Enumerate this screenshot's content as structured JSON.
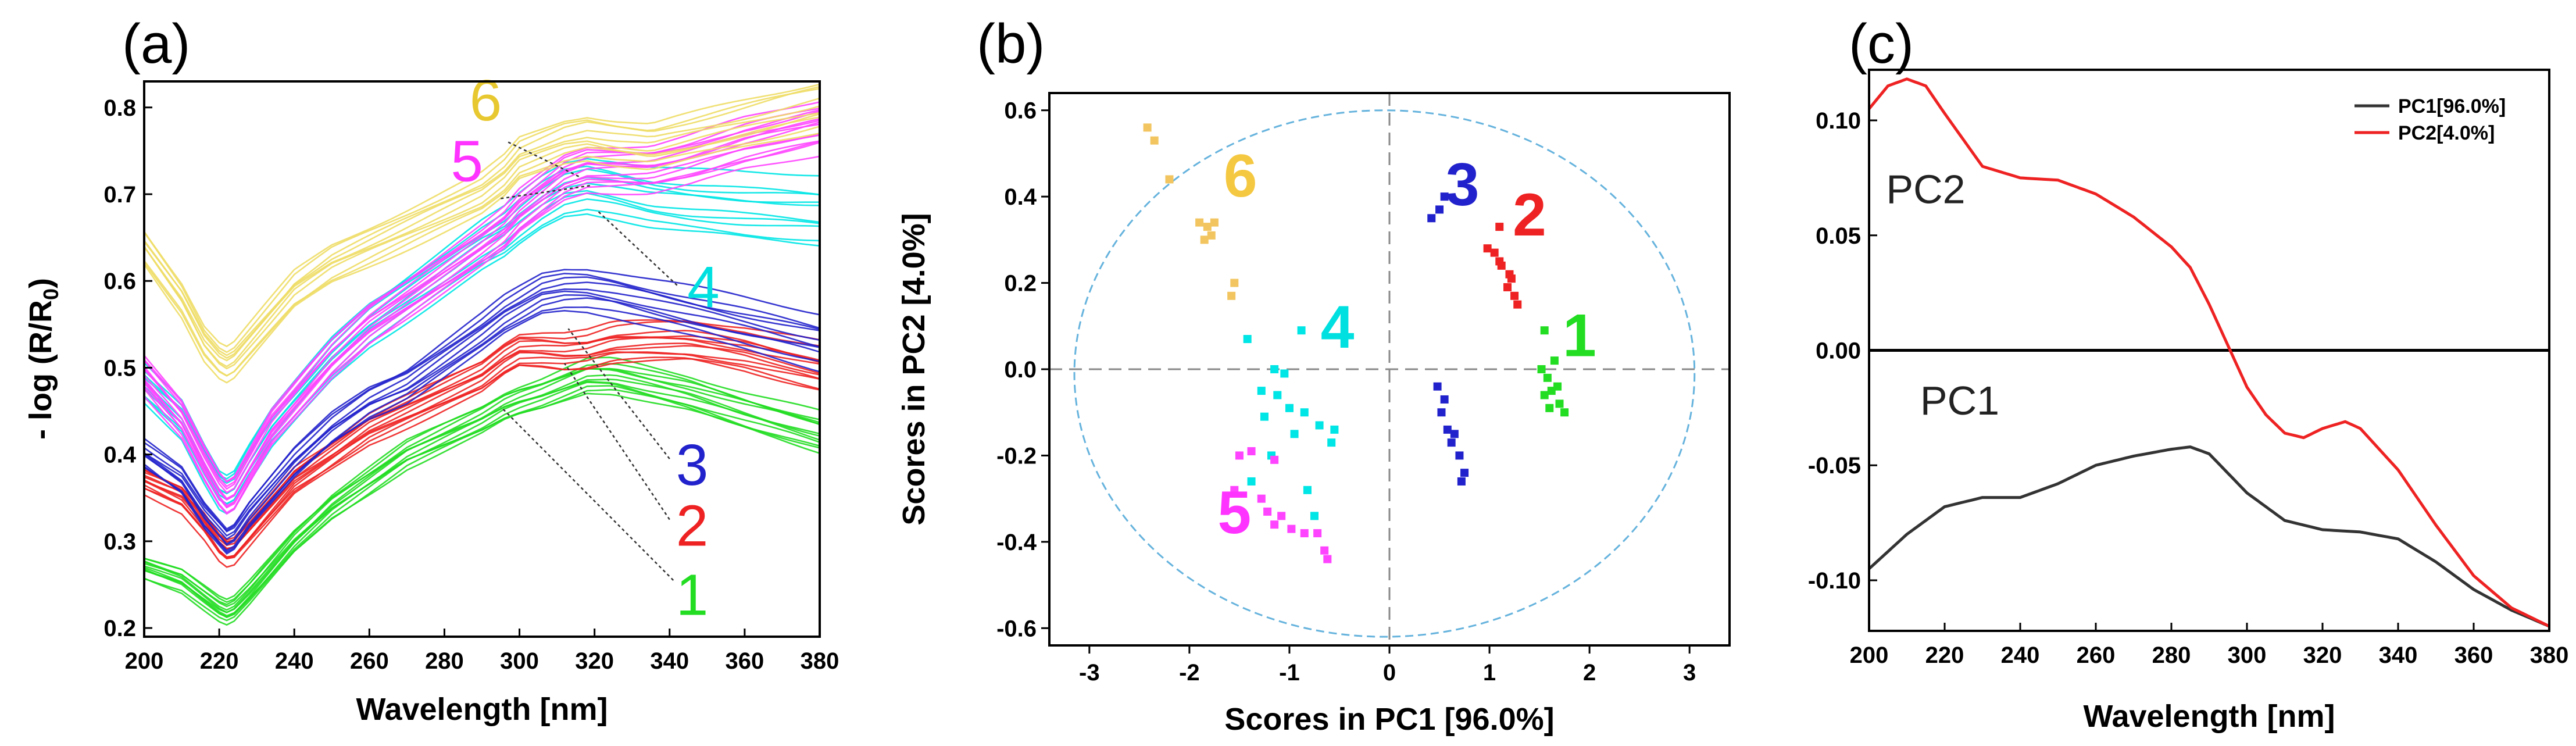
{
  "chart_data": [
    {
      "type": "line",
      "panel_label": "(a)",
      "xlabel": "Wavelength [nm]",
      "ylabel": "- log (R/R",
      "ylabel_sub": "0",
      "ylabel_close": ")",
      "xlim": [
        200,
        380
      ],
      "ylim": [
        0.19,
        0.83
      ],
      "xticks": [
        "200",
        "220",
        "240",
        "260",
        "280",
        "300",
        "320",
        "340",
        "360",
        "380"
      ],
      "yticks": [
        "0.2",
        "0.3",
        "0.4",
        "0.5",
        "0.6",
        "0.7",
        "0.8"
      ],
      "key_x": [
        200,
        210,
        216,
        220,
        222,
        224,
        228,
        234,
        240,
        250,
        260,
        270,
        280,
        290,
        296,
        300,
        306,
        312,
        318,
        325,
        335,
        345,
        360,
        380
      ],
      "groups": [
        {
          "name": "1",
          "color": "#22dd22",
          "count": 12,
          "spread": 0.035,
          "y": [
            0.27,
            0.255,
            0.235,
            0.222,
            0.218,
            0.222,
            0.24,
            0.27,
            0.3,
            0.34,
            0.37,
            0.4,
            0.42,
            0.44,
            0.455,
            0.462,
            0.47,
            0.48,
            0.49,
            0.49,
            0.48,
            0.47,
            0.45,
            0.425
          ]
        },
        {
          "name": "2",
          "color": "#ee2222",
          "count": 12,
          "spread": 0.04,
          "y": [
            0.37,
            0.35,
            0.32,
            0.295,
            0.288,
            0.29,
            0.31,
            0.34,
            0.37,
            0.4,
            0.43,
            0.45,
            0.47,
            0.49,
            0.51,
            0.52,
            0.52,
            0.518,
            0.52,
            0.528,
            0.53,
            0.53,
            0.52,
            0.5
          ]
        },
        {
          "name": "3",
          "color": "#2222cc",
          "count": 10,
          "spread": 0.045,
          "y": [
            0.4,
            0.37,
            0.33,
            0.31,
            0.3,
            0.305,
            0.33,
            0.36,
            0.39,
            0.43,
            0.46,
            0.48,
            0.51,
            0.54,
            0.56,
            0.57,
            0.585,
            0.59,
            0.59,
            0.585,
            0.575,
            0.565,
            0.55,
            0.53
          ]
        },
        {
          "name": "4",
          "color": "#00e5e5",
          "count": 10,
          "spread": 0.06,
          "y": [
            0.48,
            0.44,
            0.39,
            0.36,
            0.355,
            0.36,
            0.39,
            0.43,
            0.46,
            0.51,
            0.55,
            0.58,
            0.61,
            0.64,
            0.655,
            0.67,
            0.69,
            0.705,
            0.71,
            0.705,
            0.695,
            0.69,
            0.685,
            0.68
          ]
        },
        {
          "name": "5",
          "color": "#ff44ff",
          "count": 14,
          "spread": 0.05,
          "y": [
            0.49,
            0.44,
            0.39,
            0.36,
            0.35,
            0.355,
            0.385,
            0.43,
            0.46,
            0.51,
            0.55,
            0.58,
            0.61,
            0.64,
            0.66,
            0.68,
            0.7,
            0.72,
            0.73,
            0.73,
            0.73,
            0.74,
            0.76,
            0.78
          ]
        },
        {
          "name": "6",
          "color": "#eedd66",
          "count": 10,
          "spread": 0.05,
          "y": [
            0.64,
            0.58,
            0.53,
            0.51,
            0.505,
            0.51,
            0.53,
            0.56,
            0.59,
            0.62,
            0.64,
            0.66,
            0.68,
            0.7,
            0.72,
            0.74,
            0.75,
            0.76,
            0.765,
            0.76,
            0.755,
            0.765,
            0.78,
            0.8
          ]
        }
      ],
      "annotations": [
        {
          "text": "6",
          "color": "#e8c830",
          "x": 291,
          "y": 0.785,
          "from": [
            297,
            0.76
          ],
          "to": [
            316,
            0.72
          ]
        },
        {
          "text": "5",
          "color": "#ff33ff",
          "x": 286,
          "y": 0.715,
          "from": [
            295,
            0.695
          ],
          "to": [
            319,
            0.71
          ]
        },
        {
          "text": "4",
          "color": "#00e0e0",
          "x": 349,
          "y": 0.57,
          "from": [
            342,
            0.595
          ],
          "to": [
            321,
            0.68
          ]
        },
        {
          "text": "3",
          "color": "#2222cc",
          "x": 346,
          "y": 0.365,
          "from": [
            340,
            0.395
          ],
          "to": [
            313,
            0.545
          ]
        },
        {
          "text": "2",
          "color": "#ee2222",
          "x": 346,
          "y": 0.295,
          "from": [
            340,
            0.325
          ],
          "to": [
            312,
            0.505
          ]
        },
        {
          "text": "1",
          "color": "#22dd22",
          "x": 346,
          "y": 0.215,
          "from": [
            341,
            0.255
          ],
          "to": [
            295,
            0.455
          ]
        }
      ]
    },
    {
      "type": "scatter",
      "panel_label": "(b)",
      "xlabel": "Scores in PC1 [96.0%]",
      "ylabel": "Scores in PC2 [4.0%]",
      "xlim": [
        -3.4,
        3.4
      ],
      "ylim": [
        -0.64,
        0.64
      ],
      "xticks": [
        "-3",
        "-2",
        "-1",
        "0",
        "1",
        "2",
        "3"
      ],
      "xtick_values": [
        -3,
        -2,
        -1,
        0,
        1,
        2,
        3
      ],
      "yticks": [
        "-0.6",
        "-0.4",
        "-0.2",
        "0.0",
        "0.2",
        "0.4",
        "0.6"
      ],
      "ytick_values": [
        -0.6,
        -0.4,
        -0.2,
        0.0,
        0.2,
        0.4,
        0.6
      ],
      "ellipse": {
        "cx": -0.05,
        "cy": -0.01,
        "rx": 3.1,
        "ry": 0.61,
        "color": "#66b3dd"
      },
      "zero_lines_color": "#888888",
      "groups": [
        {
          "name": "1",
          "color": "#22dd22",
          "label_pos": [
            1.9,
            0.03
          ],
          "points": [
            [
              1.55,
              0.09
            ],
            [
              1.52,
              0.0
            ],
            [
              1.58,
              -0.02
            ],
            [
              1.62,
              -0.05
            ],
            [
              1.55,
              -0.06
            ],
            [
              1.6,
              -0.09
            ],
            [
              1.7,
              -0.08
            ],
            [
              1.75,
              -0.1
            ],
            [
              1.68,
              -0.04
            ],
            [
              1.65,
              0.02
            ]
          ]
        },
        {
          "name": "2",
          "color": "#ee2222",
          "label_pos": [
            1.4,
            0.31
          ],
          "points": [
            [
              1.1,
              0.33
            ],
            [
              0.98,
              0.28
            ],
            [
              1.05,
              0.27
            ],
            [
              1.12,
              0.24
            ],
            [
              1.2,
              0.22
            ],
            [
              1.18,
              0.19
            ],
            [
              1.25,
              0.17
            ],
            [
              1.28,
              0.15
            ],
            [
              1.1,
              0.25
            ],
            [
              1.22,
              0.21
            ]
          ]
        },
        {
          "name": "3",
          "color": "#2222cc",
          "label_pos": [
            0.73,
            0.38
          ],
          "points": [
            [
              0.42,
              0.35
            ],
            [
              0.5,
              0.37
            ],
            [
              0.55,
              0.4
            ],
            [
              0.48,
              -0.04
            ],
            [
              0.55,
              -0.07
            ],
            [
              0.52,
              -0.1
            ],
            [
              0.58,
              -0.14
            ],
            [
              0.65,
              -0.15
            ],
            [
              0.7,
              -0.2
            ],
            [
              0.75,
              -0.24
            ],
            [
              0.62,
              -0.17
            ],
            [
              0.72,
              -0.26
            ]
          ]
        },
        {
          "name": "4",
          "color": "#00e5e5",
          "label_pos": [
            -0.52,
            0.05
          ],
          "points": [
            [
              -1.42,
              0.07
            ],
            [
              -0.88,
              0.09
            ],
            [
              -1.15,
              0.0
            ],
            [
              -1.05,
              -0.01
            ],
            [
              -1.28,
              -0.05
            ],
            [
              -1.12,
              -0.06
            ],
            [
              -1.0,
              -0.09
            ],
            [
              -0.85,
              -0.1
            ],
            [
              -1.25,
              -0.11
            ],
            [
              -0.7,
              -0.13
            ],
            [
              -0.95,
              -0.15
            ],
            [
              -0.55,
              -0.14
            ],
            [
              -0.58,
              -0.17
            ],
            [
              -1.18,
              -0.2
            ],
            [
              -1.38,
              -0.26
            ],
            [
              -0.82,
              -0.28
            ],
            [
              -0.75,
              -0.34
            ]
          ]
        },
        {
          "name": "5",
          "color": "#ff44ff",
          "label_pos": [
            -1.55,
            -0.38
          ],
          "points": [
            [
              -1.5,
              -0.2
            ],
            [
              -1.38,
              -0.19
            ],
            [
              -1.15,
              -0.21
            ],
            [
              -1.55,
              -0.28
            ],
            [
              -1.28,
              -0.3
            ],
            [
              -1.22,
              -0.33
            ],
            [
              -1.08,
              -0.34
            ],
            [
              -0.98,
              -0.37
            ],
            [
              -0.85,
              -0.38
            ],
            [
              -0.72,
              -0.38
            ],
            [
              -0.65,
              -0.42
            ],
            [
              -0.62,
              -0.44
            ],
            [
              -1.15,
              -0.36
            ]
          ]
        },
        {
          "name": "6",
          "color": "#f2c560",
          "label_pos": [
            -1.49,
            0.4
          ],
          "points": [
            [
              -2.42,
              0.56
            ],
            [
              -2.35,
              0.53
            ],
            [
              -2.2,
              0.44
            ],
            [
              -1.9,
              0.34
            ],
            [
              -1.82,
              0.33
            ],
            [
              -1.75,
              0.34
            ],
            [
              -1.85,
              0.3
            ],
            [
              -1.78,
              0.31
            ],
            [
              -1.55,
              0.2
            ],
            [
              -1.58,
              0.17
            ]
          ]
        }
      ],
      "number_label_colors": {
        "1": "#22dd22",
        "2": "#ee2222",
        "3": "#2222cc",
        "4": "#00e0e0",
        "5": "#ff33ff",
        "6": "#f5c842"
      }
    },
    {
      "type": "line",
      "panel_label": "(c)",
      "xlabel": "Wavelength [nm]",
      "ylabel": "",
      "xlim": [
        200,
        380
      ],
      "ylim": [
        -0.122,
        0.122
      ],
      "xticks": [
        "200",
        "220",
        "240",
        "260",
        "280",
        "300",
        "320",
        "340",
        "360",
        "380"
      ],
      "yticks": [
        "-0.10",
        "-0.05",
        "0.00",
        "0.05",
        "0.10"
      ],
      "ytick_values": [
        -0.1,
        -0.05,
        0.0,
        0.05,
        0.1
      ],
      "zero_line": true,
      "legend": {
        "position": "top-right"
      },
      "series": [
        {
          "name": "PC1[96.0%]",
          "color": "#333333",
          "inline_label": "PC1",
          "inline_pos": [
            224,
            -0.028
          ],
          "x": [
            200,
            210,
            220,
            230,
            240,
            250,
            260,
            270,
            280,
            285,
            290,
            300,
            310,
            320,
            330,
            340,
            350,
            360,
            370,
            380
          ],
          "y": [
            -0.095,
            -0.08,
            -0.068,
            -0.064,
            -0.064,
            -0.058,
            -0.05,
            -0.046,
            -0.043,
            -0.042,
            -0.045,
            -0.062,
            -0.074,
            -0.078,
            -0.079,
            -0.082,
            -0.092,
            -0.104,
            -0.113,
            -0.12
          ]
        },
        {
          "name": "PC2[4.0%]",
          "color": "#ee2222",
          "inline_label": "PC2",
          "inline_pos": [
            215,
            0.064
          ],
          "x": [
            200,
            205,
            210,
            215,
            220,
            230,
            240,
            250,
            260,
            270,
            280,
            285,
            290,
            295,
            300,
            305,
            310,
            315,
            320,
            326,
            330,
            340,
            350,
            360,
            370,
            380
          ],
          "y": [
            0.105,
            0.115,
            0.118,
            0.115,
            0.103,
            0.08,
            0.075,
            0.074,
            0.068,
            0.058,
            0.045,
            0.036,
            0.02,
            0.002,
            -0.016,
            -0.028,
            -0.036,
            -0.038,
            -0.034,
            -0.031,
            -0.034,
            -0.052,
            -0.076,
            -0.098,
            -0.112,
            -0.12
          ]
        }
      ]
    }
  ]
}
